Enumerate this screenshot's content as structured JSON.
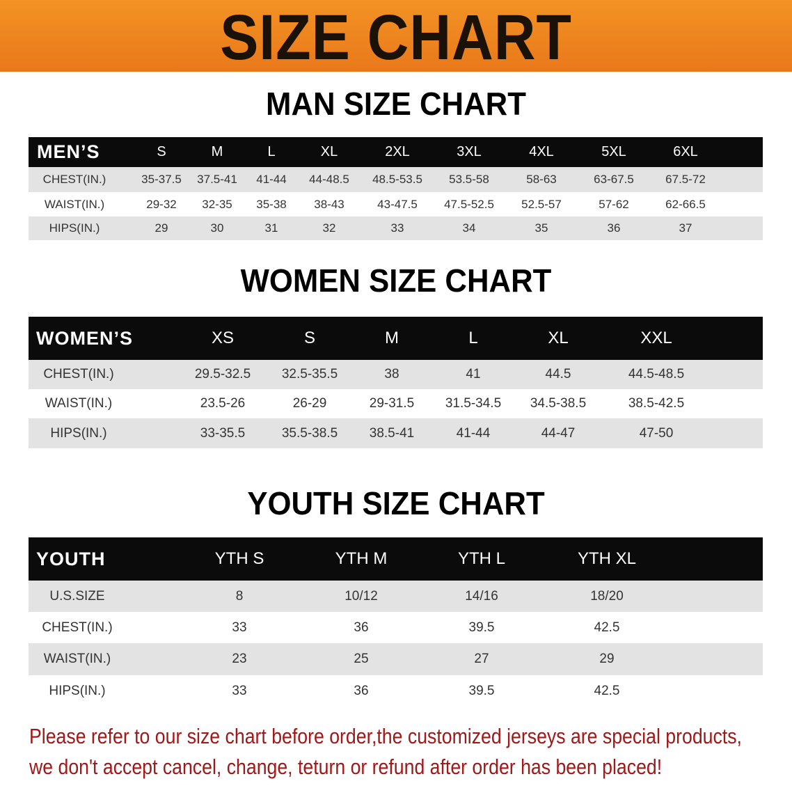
{
  "banner": {
    "title": "SIZE CHART",
    "color": "#ef8620"
  },
  "men": {
    "title": "MAN SIZE CHART",
    "header": "MEN’S",
    "sizes": [
      "S",
      "M",
      "L",
      "XL",
      "2XL",
      "3XL",
      "4XL",
      "5XL",
      "6XL"
    ],
    "rows": [
      {
        "label": "CHEST(IN.)",
        "values": [
          "35-37.5",
          "37.5-41",
          "41-44",
          "44-48.5",
          "48.5-53.5",
          "53.5-58",
          "58-63",
          "63-67.5",
          "67.5-72"
        ]
      },
      {
        "label": "WAIST(IN.)",
        "values": [
          "29-32",
          "32-35",
          "35-38",
          "38-43",
          "43-47.5",
          "47.5-52.5",
          "52.5-57",
          "57-62",
          "62-66.5"
        ]
      },
      {
        "label": "HIPS(IN.)",
        "values": [
          "29",
          "30",
          "31",
          "32",
          "33",
          "34",
          "35",
          "36",
          "37"
        ]
      }
    ]
  },
  "women": {
    "title": "WOMEN SIZE CHART",
    "header": "WOMEN’S",
    "sizes": [
      "XS",
      "S",
      "M",
      "L",
      "XL",
      "XXL"
    ],
    "rows": [
      {
        "label": "CHEST(IN.)",
        "values": [
          "29.5-32.5",
          "32.5-35.5",
          "38",
          "41",
          "44.5",
          "44.5-48.5"
        ]
      },
      {
        "label": "WAIST(IN.)",
        "values": [
          "23.5-26",
          "26-29",
          "29-31.5",
          "31.5-34.5",
          "34.5-38.5",
          "38.5-42.5"
        ]
      },
      {
        "label": "HIPS(IN.)",
        "values": [
          "33-35.5",
          "35.5-38.5",
          "38.5-41",
          "41-44",
          "44-47",
          "47-50"
        ]
      }
    ]
  },
  "youth": {
    "title": "YOUTH SIZE CHART",
    "header": "YOUTH",
    "sizes": [
      "YTH S",
      "YTH M",
      "YTH L",
      "YTH XL"
    ],
    "rows": [
      {
        "label": "U.S.SIZE",
        "values": [
          "8",
          "10/12",
          "14/16",
          "18/20"
        ]
      },
      {
        "label": "CHEST(IN.)",
        "values": [
          "33",
          "36",
          "39.5",
          "42.5"
        ]
      },
      {
        "label": "WAIST(IN.)",
        "values": [
          "23",
          "25",
          "27",
          "29"
        ]
      },
      {
        "label": "HIPS(IN.)",
        "values": [
          "33",
          "36",
          "39.5",
          "42.5"
        ]
      }
    ]
  },
  "notice": {
    "line1": "Please refer to our size chart before order,the customized jerseys are special products,",
    "line2": "we don't accept cancel, change, teturn or refund after order has been placed!"
  }
}
